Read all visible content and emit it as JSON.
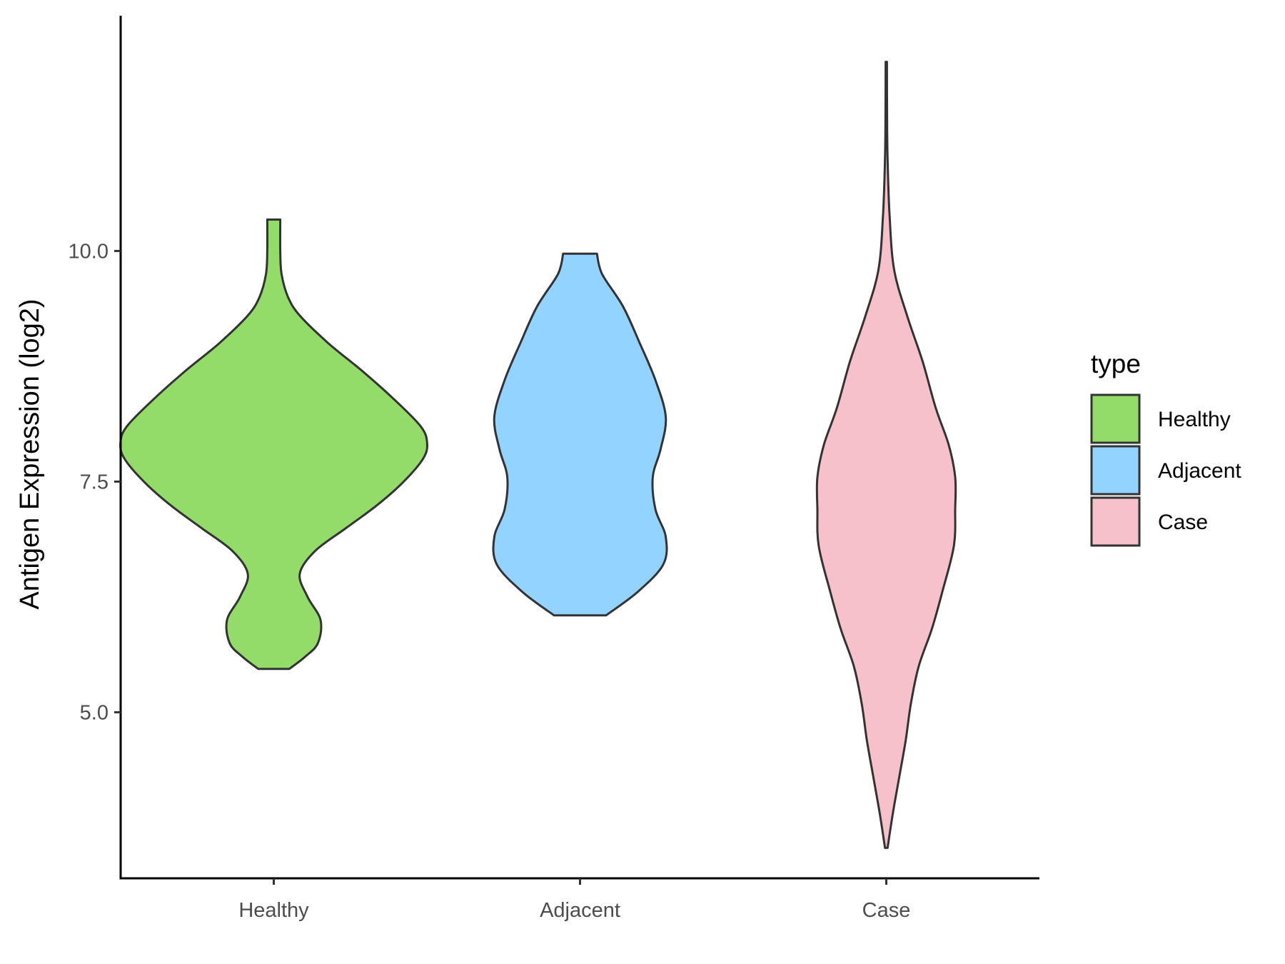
{
  "chart_data": {
    "type": "violin",
    "categories": [
      "Healthy",
      "Adjacent",
      "Case"
    ],
    "ylabel": "Antigen Expression (log2)",
    "xlabel": "",
    "ylim": [
      3.2,
      12.55
    ],
    "yticks": [
      5.0,
      7.5,
      10.0
    ],
    "ytick_labels": [
      "5.0",
      "7.5",
      "10.0"
    ],
    "grid": false,
    "legend": {
      "title": "type",
      "position": "right",
      "items": [
        {
          "label": "Healthy",
          "color": "#93DC6A"
        },
        {
          "label": "Adjacent",
          "color": "#93D3FF"
        },
        {
          "label": "Case",
          "color": "#F7C1CC"
        }
      ]
    },
    "series": [
      {
        "category": "Healthy",
        "color": "#93DC6A",
        "min": 5.47,
        "max": 10.34,
        "density": [
          [
            5.47,
            0.12
          ],
          [
            5.6,
            0.24
          ],
          [
            5.75,
            0.34
          ],
          [
            6.0,
            0.36
          ],
          [
            6.25,
            0.26
          ],
          [
            6.5,
            0.2
          ],
          [
            6.75,
            0.32
          ],
          [
            7.0,
            0.56
          ],
          [
            7.25,
            0.8
          ],
          [
            7.5,
            1.0
          ],
          [
            7.75,
            1.15
          ],
          [
            7.92,
            1.18
          ],
          [
            8.1,
            1.13
          ],
          [
            8.4,
            0.92
          ],
          [
            8.7,
            0.68
          ],
          [
            9.0,
            0.42
          ],
          [
            9.3,
            0.2
          ],
          [
            9.5,
            0.11
          ],
          [
            9.75,
            0.06
          ],
          [
            10.0,
            0.05
          ],
          [
            10.34,
            0.05
          ]
        ]
      },
      {
        "category": "Adjacent",
        "color": "#93D3FF",
        "min": 6.05,
        "max": 9.97,
        "density": [
          [
            6.05,
            0.2
          ],
          [
            6.3,
            0.44
          ],
          [
            6.6,
            0.64
          ],
          [
            6.9,
            0.66
          ],
          [
            7.2,
            0.58
          ],
          [
            7.55,
            0.56
          ],
          [
            7.85,
            0.62
          ],
          [
            8.2,
            0.66
          ],
          [
            8.6,
            0.58
          ],
          [
            9.0,
            0.46
          ],
          [
            9.4,
            0.33
          ],
          [
            9.75,
            0.17
          ],
          [
            9.97,
            0.13
          ]
        ]
      },
      {
        "category": "Case",
        "color": "#F7C1CC",
        "min": 3.53,
        "max": 12.05,
        "density": [
          [
            3.53,
            0.01
          ],
          [
            3.9,
            0.05
          ],
          [
            4.3,
            0.1
          ],
          [
            4.7,
            0.15
          ],
          [
            5.1,
            0.19
          ],
          [
            5.5,
            0.25
          ],
          [
            5.9,
            0.35
          ],
          [
            6.3,
            0.43
          ],
          [
            6.8,
            0.52
          ],
          [
            7.2,
            0.53
          ],
          [
            7.55,
            0.53
          ],
          [
            7.9,
            0.48
          ],
          [
            8.3,
            0.38
          ],
          [
            8.8,
            0.28
          ],
          [
            9.3,
            0.16
          ],
          [
            9.8,
            0.06
          ],
          [
            10.4,
            0.025
          ],
          [
            11.0,
            0.01
          ],
          [
            11.5,
            0.006
          ],
          [
            12.05,
            0.005
          ]
        ]
      }
    ]
  }
}
